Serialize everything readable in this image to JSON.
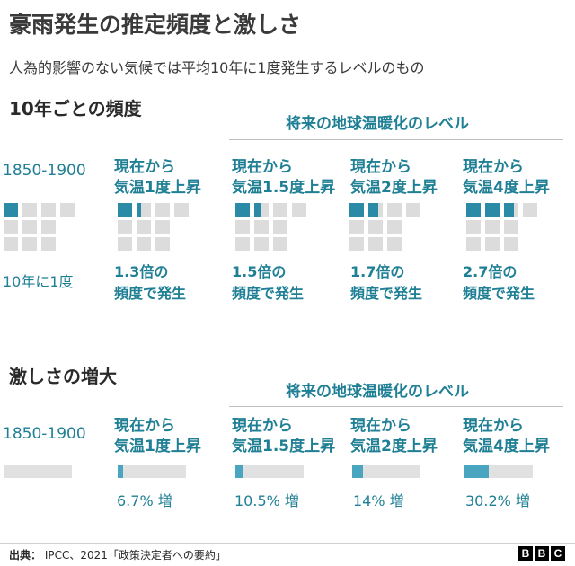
{
  "title": "豪雨発生の推定頻度と激しさ",
  "subtitle": "人為的影響のない気候では平均10年に1度発生するレベルのもの",
  "frequency_section": {
    "heading": "10年ごとの頻度",
    "future_label": "将来の地球温暖化のレベル",
    "baseline_label": "1850-1900",
    "baseline_result": "10年に1度",
    "columns": [
      {
        "line1": "現在から",
        "line2": "気温1度上昇",
        "res1": "1.3倍の",
        "res2": "頻度で発生"
      },
      {
        "line1": "現在から",
        "line2": "気温1.5度上昇",
        "res1": "1.5倍の",
        "res2": "頻度で発生"
      },
      {
        "line1": "現在から",
        "line2": "気温2度上昇",
        "res1": "1.7倍の",
        "res2": "頻度で発生"
      },
      {
        "line1": "現在から",
        "line2": "気温4度上昇",
        "res1": "2.7倍の",
        "res2": "頻度で発生"
      }
    ]
  },
  "intensity_section": {
    "heading": "激しさの増大",
    "future_label": "将来の地球温暖化のレベル",
    "baseline_label": "1850-1900",
    "columns": [
      {
        "line1": "現在から",
        "line2": "気温1度上昇",
        "pct": "6.7% 増"
      },
      {
        "line1": "現在から",
        "line2": "気温1.5度上昇",
        "pct": "10.5% 増"
      },
      {
        "line1": "現在から",
        "line2": "気温2度上昇",
        "pct": "14% 増"
      },
      {
        "line1": "現在から",
        "line2": "気温4度上昇",
        "pct": "30.2% 増"
      }
    ]
  },
  "source": {
    "label": "出典：",
    "text": "IPCC、2021「政策決定者への要約」"
  },
  "logo": [
    "B",
    "B",
    "C"
  ],
  "colors": {
    "accent": "#1f7f95",
    "filled_square": "#2b8aa6",
    "empty_square": "#dcdcdc",
    "bar_fill": "#4aa6c0",
    "bar_track": "#e1e1e1"
  },
  "chart_data": [
    {
      "type": "table",
      "title": "10年ごとの頻度",
      "categories": [
        "1850-1900",
        "気温1度上昇",
        "気温1.5度上昇",
        "気温2度上昇",
        "気温4度上昇"
      ],
      "values": [
        1,
        1.3,
        1.5,
        1.7,
        2.7
      ],
      "units": "10年に1度を基準とした頻度の倍率"
    },
    {
      "type": "bar",
      "title": "激しさの増大",
      "categories": [
        "1850-1900",
        "気温1度上昇",
        "気温1.5度上昇",
        "気温2度上昇",
        "気温4度上昇"
      ],
      "values": [
        0,
        6.7,
        10.5,
        14,
        30.2
      ],
      "units": "%"
    }
  ]
}
